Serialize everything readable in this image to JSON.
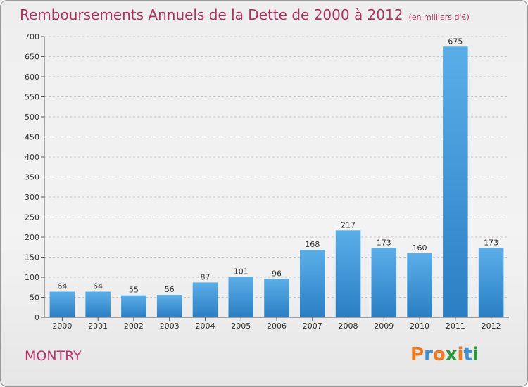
{
  "header": {
    "title": "Remboursements Annuels de la Dette de 2000 à 2012",
    "subtitle": "(en milliers d'€)"
  },
  "footer": {
    "commune": "MONTRY",
    "logo_text": "Proxiti",
    "logo_letter_colors": [
      "#f07a1a",
      "#3a8fd6",
      "#f07a1a",
      "#2a9b3a",
      "#f07a1a",
      "#3a8fd6",
      "#2a9b3a"
    ]
  },
  "colors": {
    "bar_top": "#5aaee8",
    "bar_bottom": "#2a7fc4",
    "title": "#b0305f",
    "grid": "#c8c8c8"
  },
  "chart_data": {
    "type": "bar",
    "title": "Remboursements Annuels de la Dette de 2000 à 2012",
    "subtitle": "(en milliers d'€)",
    "xlabel": "",
    "ylabel": "",
    "categories": [
      "2000",
      "2001",
      "2002",
      "2003",
      "2004",
      "2005",
      "2006",
      "2007",
      "2008",
      "2009",
      "2010",
      "2011",
      "2012"
    ],
    "values": [
      64,
      64,
      55,
      56,
      87,
      101,
      96,
      168,
      217,
      173,
      160,
      675,
      173
    ],
    "ylim": [
      0,
      700
    ],
    "yticks": [
      0,
      50,
      100,
      150,
      200,
      250,
      300,
      350,
      400,
      450,
      500,
      550,
      600,
      650,
      700
    ],
    "grid": "horizontal dashed",
    "legend": "none"
  }
}
